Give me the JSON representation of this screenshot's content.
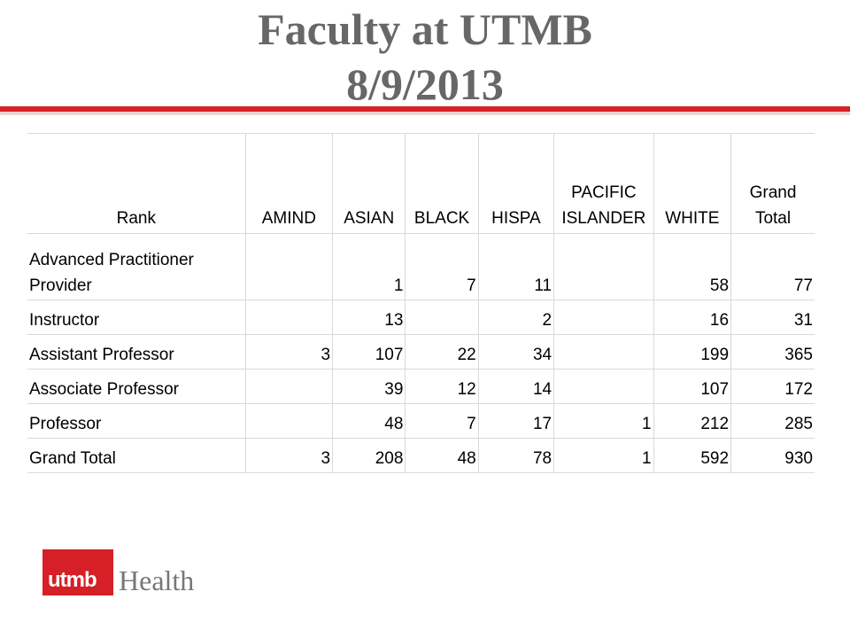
{
  "title": {
    "line1": "Faculty at UTMB",
    "line2": "8/9/2013"
  },
  "colors": {
    "accent_red": "#d61f26",
    "title_gray": "#676767"
  },
  "table": {
    "headers": [
      "Rank",
      "AMIND",
      "ASIAN",
      "BLACK",
      "HISPA",
      "PACIFIC ISLANDER",
      "WHITE",
      "Grand Total"
    ],
    "rows": [
      [
        "Advanced Practitioner Provider",
        "",
        "1",
        "7",
        "11",
        "",
        "58",
        "77"
      ],
      [
        "Instructor",
        "",
        "13",
        "",
        "2",
        "",
        "16",
        "31"
      ],
      [
        "Assistant Professor",
        "3",
        "107",
        "22",
        "34",
        "",
        "199",
        "365"
      ],
      [
        "Associate Professor",
        "",
        "39",
        "12",
        "14",
        "",
        "107",
        "172"
      ],
      [
        "Professor",
        "",
        "48",
        "7",
        "17",
        "1",
        "212",
        "285"
      ],
      [
        "Grand Total",
        "3",
        "208",
        "48",
        "78",
        "1",
        "592",
        "930"
      ]
    ]
  },
  "logo": {
    "mark_text": "utmb",
    "health_text": "Health",
    "mark_icon": "utmb-logo-mark-icon"
  }
}
